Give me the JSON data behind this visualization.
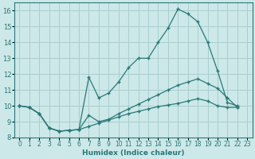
{
  "xlabel": "Humidex (Indice chaleur)",
  "ylabel": "",
  "bg_color": "#cce8e8",
  "grid_color": "#aacece",
  "line_color": "#2a7878",
  "xlim": [
    -0.5,
    23.5
  ],
  "ylim": [
    8,
    16.5
  ],
  "xticks": [
    0,
    1,
    2,
    3,
    4,
    5,
    6,
    7,
    8,
    9,
    10,
    11,
    12,
    13,
    14,
    15,
    16,
    17,
    18,
    19,
    20,
    21,
    22,
    23
  ],
  "yticks": [
    8,
    9,
    10,
    11,
    12,
    13,
    14,
    15,
    16
  ],
  "line1_x": [
    0,
    1,
    2,
    3,
    4,
    5,
    6,
    7,
    8,
    9,
    10,
    11,
    12,
    13,
    14,
    15,
    16,
    17,
    18,
    19,
    20,
    21,
    22
  ],
  "line1_y": [
    10.0,
    9.9,
    9.5,
    8.6,
    8.4,
    8.45,
    8.5,
    8.7,
    8.9,
    9.1,
    9.3,
    9.5,
    9.65,
    9.8,
    9.95,
    10.05,
    10.15,
    10.3,
    10.45,
    10.3,
    10.0,
    9.9,
    9.9
  ],
  "line2_x": [
    0,
    1,
    2,
    3,
    4,
    5,
    6,
    7,
    8,
    9,
    10,
    11,
    12,
    13,
    14,
    15,
    16,
    17,
    18,
    19,
    20,
    21,
    22
  ],
  "line2_y": [
    10.0,
    9.9,
    9.5,
    8.6,
    8.4,
    8.45,
    8.5,
    11.8,
    10.5,
    10.8,
    11.5,
    12.4,
    13.0,
    13.0,
    14.0,
    14.9,
    16.1,
    15.8,
    15.3,
    14.0,
    12.2,
    10.2,
    10.0
  ],
  "line3_x": [
    0,
    1,
    2,
    3,
    4,
    5,
    6,
    7,
    8,
    9,
    10,
    11,
    12,
    13,
    14,
    15,
    16,
    17,
    18,
    19,
    20,
    21,
    22
  ],
  "line3_y": [
    10.0,
    9.9,
    9.5,
    8.6,
    8.4,
    8.45,
    8.5,
    9.4,
    9.0,
    9.15,
    9.5,
    9.8,
    10.1,
    10.4,
    10.7,
    11.0,
    11.3,
    11.5,
    11.7,
    11.4,
    11.1,
    10.5,
    9.9
  ]
}
